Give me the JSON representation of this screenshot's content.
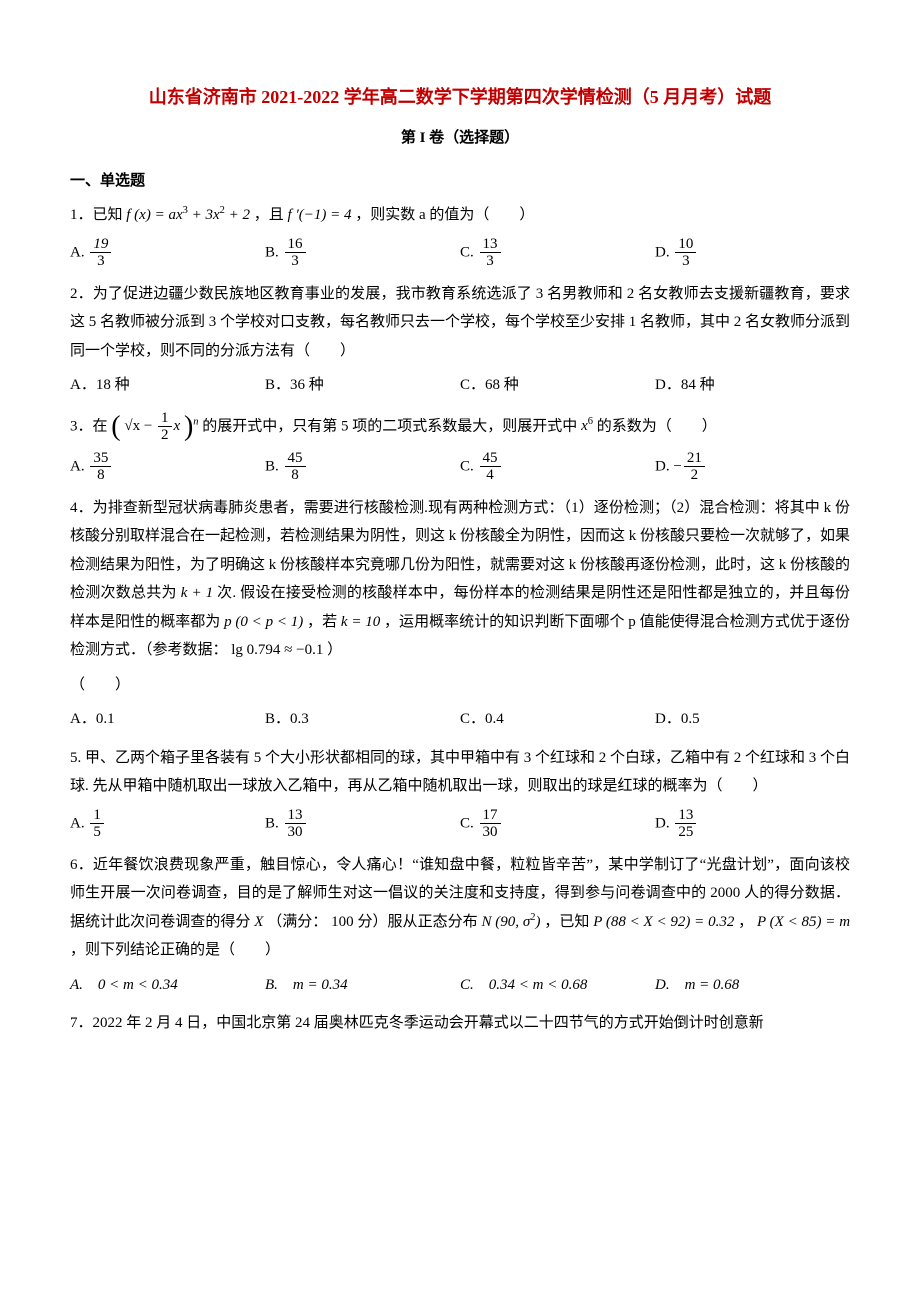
{
  "colors": {
    "title": "#c00000",
    "text": "#000000",
    "background": "#ffffff"
  },
  "typography": {
    "body_family": "SimSun",
    "math_family": "Times New Roman",
    "body_size_pt": 11,
    "title_size_pt": 14
  },
  "header": {
    "title": "山东省济南市 2021-2022 学年高二数学下学期第四次学情检测（5 月月考）试题",
    "subtitle": "第 I 卷（选择题）"
  },
  "section1": {
    "heading": "一、单选题"
  },
  "q1": {
    "stem_pre": "1．已知 ",
    "fx": "f (x) = ax",
    "fx_tail": " + 3x",
    "fx_end": " + 2",
    "and": "，且 ",
    "fprime": "f ′(−1) = 4",
    "tail": "，则实数 a 的值为（　　）",
    "A_label": "A.",
    "A_num": "19",
    "A_den": "3",
    "B_label": "B.",
    "B_num": "16",
    "B_den": "3",
    "C_label": "C.",
    "C_num": "13",
    "C_den": "3",
    "D_label": "D.",
    "D_num": "10",
    "D_den": "3"
  },
  "q2": {
    "stem": "2．为了促进边疆少数民族地区教育事业的发展，我市教育系统选派了 3 名男教师和 2 名女教师去支援新疆教育，要求这 5 名教师被分派到 3 个学校对口支教，每名教师只去一个学校，每个学校至少安排 1 名教师，其中 2 名女教师分派到同一个学校，则不同的分派方法有（　　）",
    "A": "A．18 种",
    "B": "B．36 种",
    "C": "C．68 种",
    "D": "D．84 种"
  },
  "q3": {
    "stem_pre": "3．在",
    "inner_a": "√x − ",
    "inner_num": "1",
    "inner_den": "2",
    "inner_b": "x",
    "exp": "n",
    "stem_mid": "的展开式中，只有第 5 项的二项式系数最大，则展开式中 ",
    "x6": "x",
    "stem_tail": " 的系数为（　　）",
    "A_label": "A.",
    "A_num": "35",
    "A_den": "8",
    "B_label": "B.",
    "B_num": "45",
    "B_den": "8",
    "C_label": "C.",
    "C_num": "45",
    "C_den": "4",
    "D_label": "D.",
    "D_neg": "−",
    "D_num": "21",
    "D_den": "2"
  },
  "q4": {
    "stem_a": "4．为排查新型冠状病毒肺炎患者，需要进行核酸检测.现有两种检测方式：（1）逐份检测；（2）混合检测：将其中 k 份核酸分别取样混合在一起检测，若检测结果为阴性，则这 k 份核酸全为阴性，因而这 k 份核酸只要检一次就够了，如果检测结果为阳性，为了明确这 k 份核酸样本究竟哪几份为阳性，就需要对这 k 份核酸再逐份检测，此时，这 k 份核酸的检测次数总共为 ",
    "k1": "k + 1",
    "stem_b": " 次. 假设在接受检测的核酸样本中，每份样本的检测结果是阴性还是阳性都是独立的，并且每份样本是阳性的概率都为 ",
    "p_expr": "p (0 < p < 1)",
    "stem_c": "，若 ",
    "k10": "k = 10",
    "stem_d": "，运用概率统计的知识判断下面哪个 p 值能使得混合检测方式优于逐份检测方式．（参考数据：",
    "lg": "lg 0.794 ≈ −0.1",
    "stem_e": "）",
    "blank": "（　　）",
    "A": "A．0.1",
    "B": "B．0.3",
    "C": "C．0.4",
    "D": "D．0.5"
  },
  "q5": {
    "stem": "5. 甲、乙两个箱子里各装有 5 个大小形状都相同的球，其中甲箱中有 3 个红球和 2 个白球，乙箱中有 2 个红球和 3 个白球. 先从甲箱中随机取出一球放入乙箱中，再从乙箱中随机取出一球，则取出的球是红球的概率为（　　）",
    "A_label": "A.",
    "A_num": "1",
    "A_den": "5",
    "B_label": "B.",
    "B_num": "13",
    "B_den": "30",
    "C_label": "C.",
    "C_num": "17",
    "C_den": "30",
    "D_label": "D.",
    "D_num": "13",
    "D_den": "25"
  },
  "q6": {
    "stem_a": "6．近年餐饮浪费现象严重，触目惊心，令人痛心！“谁知盘中餐，粒粒皆辛苦”，某中学制订了“光盘计划”，面向该校师生开展一次问卷调查，目的是了解师生对这一倡议的关注度和支持度，得到参与问卷调查中的 ",
    "n2000": "2000",
    "stem_b": " 人的得分数据．据统计此次问卷调查的得分 ",
    "X": "X",
    "stem_c": "（满分：",
    "full": "100",
    "stem_d": " 分）服从正态分布 ",
    "Ndist": "N (90, σ",
    "Ntail": ")",
    "stem_e": "，已知 ",
    "P1": "P (88 < X < 92) = 0.32",
    "comma": "，",
    "P2": "P (X < 85) = m",
    "stem_f": "，则下列结论正确的是（　　）",
    "A": "A.　0 < m < 0.34",
    "B": "B.　m = 0.34",
    "C": "C.　0.34 < m < 0.68",
    "D": "D.　m = 0.68"
  },
  "q7": {
    "stem": "7．2022 年 2 月 4 日，中国北京第 24 届奥林匹克冬季运动会开幕式以二十四节气的方式开始倒计时创意新"
  }
}
